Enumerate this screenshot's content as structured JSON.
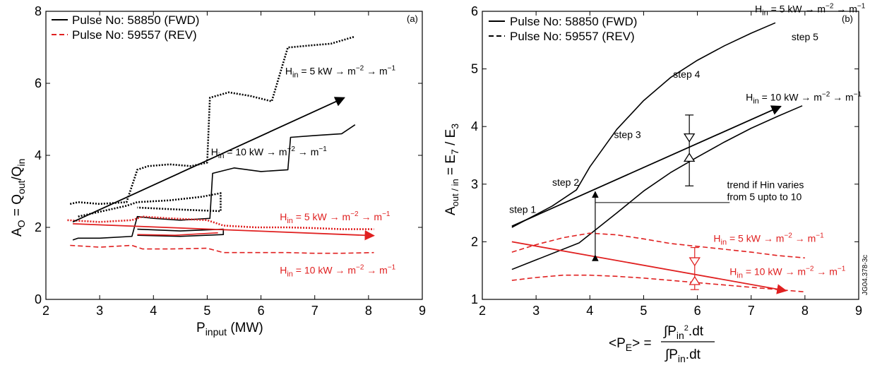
{
  "colors": {
    "fwd": "#000000",
    "rev": "#e02020"
  },
  "chart_data": [
    {
      "type": "line",
      "panel": "(a)",
      "xlabel_main": "P",
      "xlabel_sub": "input",
      "xlabel_tail": " (MW)",
      "ylabel_main": "A",
      "ylabel_sub1": "O",
      "ylabel_mid": " = Q",
      "ylabel_sub2": "out",
      "ylabel_mid2": "/Q",
      "ylabel_sub3": "in",
      "xlim": [
        2,
        9
      ],
      "ylim": [
        0,
        8
      ],
      "xticks": [
        "2",
        "3",
        "4",
        "5",
        "6",
        "7",
        "8",
        "9"
      ],
      "yticks": [
        "0",
        "2",
        "4",
        "6",
        "8"
      ],
      "legend": [
        {
          "label": "Pulse No: 58850 (FWD)",
          "style": "solid",
          "color": "#000000"
        },
        {
          "label": "Pulse No: 59557 (REV)",
          "style": "dashed",
          "color": "#e02020"
        }
      ],
      "series": [
        {
          "pulse": "58850",
          "branch": "5 kW",
          "style": "dotted",
          "color": "#000000",
          "x": [
            2.45,
            2.6,
            3.0,
            3.5,
            3.7,
            3.9,
            4.3,
            4.7,
            5.0,
            5.05,
            5.4,
            5.8,
            6.2,
            6.5,
            6.55,
            6.9,
            7.3,
            7.75
          ],
          "y": [
            2.65,
            2.7,
            2.65,
            2.7,
            3.6,
            3.7,
            3.75,
            3.7,
            3.8,
            5.6,
            5.75,
            5.65,
            5.5,
            7.0,
            7.0,
            7.05,
            7.1,
            7.3
          ]
        },
        {
          "pulse": "58850",
          "branch": "5 kW return",
          "style": "dotted",
          "color": "#000000",
          "x": [
            2.6,
            3.5,
            3.7,
            4.3,
            4.9,
            5.25,
            5.25,
            4.4,
            3.7
          ],
          "y": [
            2.3,
            2.6,
            2.7,
            2.75,
            2.85,
            2.95,
            2.45,
            2.5,
            2.55
          ]
        },
        {
          "pulse": "58850",
          "branch": "10 kW",
          "style": "solid",
          "color": "#000000",
          "x": [
            2.5,
            2.6,
            3.0,
            3.6,
            3.7,
            4.0,
            4.5,
            5.05,
            5.1,
            5.5,
            6.0,
            6.5,
            6.55,
            7.0,
            7.5,
            7.75
          ],
          "y": [
            1.65,
            1.7,
            1.7,
            1.75,
            2.3,
            2.25,
            2.2,
            2.25,
            3.5,
            3.65,
            3.55,
            3.6,
            4.5,
            4.55,
            4.6,
            4.85
          ]
        },
        {
          "pulse": "58850",
          "branch": "10 kW return",
          "style": "solid",
          "color": "#000000",
          "x": [
            3.7,
            4.5,
            5.3,
            5.3,
            4.5,
            3.7
          ],
          "y": [
            1.95,
            1.9,
            1.95,
            1.8,
            1.75,
            1.78
          ]
        },
        {
          "pulse": "59557",
          "branch": "5 kW",
          "style": "dotted",
          "color": "#e02020",
          "x": [
            2.4,
            3.0,
            3.6,
            3.8,
            4.3,
            5.0,
            5.3,
            5.9,
            6.5,
            7.0,
            7.5,
            8.1
          ],
          "y": [
            2.2,
            2.15,
            2.2,
            2.3,
            2.25,
            2.2,
            2.05,
            2.0,
            2.0,
            1.98,
            1.95,
            1.95
          ]
        },
        {
          "pulse": "59557",
          "branch": "10 kW",
          "style": "dashed",
          "color": "#e02020",
          "x": [
            2.45,
            3.0,
            3.6,
            3.8,
            4.3,
            5.0,
            5.3,
            6.0,
            6.5,
            7.0,
            7.5,
            8.1
          ],
          "y": [
            1.5,
            1.45,
            1.5,
            1.4,
            1.4,
            1.42,
            1.3,
            1.3,
            1.3,
            1.28,
            1.28,
            1.3
          ]
        },
        {
          "pulse": "59557",
          "branch": "10 kW return",
          "style": "solid",
          "color": "#e02020",
          "x": [
            3.7,
            4.4,
            5.2
          ],
          "y": [
            1.8,
            1.78,
            1.85
          ]
        }
      ],
      "arrows": [
        {
          "color": "#000000",
          "from": [
            2.5,
            2.15
          ],
          "to": [
            7.55,
            5.6
          ]
        },
        {
          "color": "#e02020",
          "from": [
            2.5,
            2.1
          ],
          "to": [
            8.1,
            1.77
          ]
        }
      ],
      "annotations": [
        {
          "id": "a-h5-black",
          "pre": "H",
          "sub": "in",
          "text": " = 5 kW → m",
          "sup1": "−2",
          "text2": " → m",
          "sup2": "−1",
          "x": 6.45,
          "y": 6.25,
          "color": "#000000"
        },
        {
          "id": "a-h10-black",
          "pre": "H",
          "sub": "in",
          "text": " = 10 kW → m",
          "sup1": "−2",
          "text2": " → m",
          "sup2": "−1",
          "x": 5.07,
          "y": 4.0,
          "color": "#000000"
        },
        {
          "id": "a-h5-red",
          "pre": "H",
          "sub": "in",
          "text": " = 5 kW → m",
          "sup1": "−2",
          "text2": " → m",
          "sup2": "−1",
          "x": 6.35,
          "y": 2.2,
          "color": "#e02020"
        },
        {
          "id": "a-h10-red",
          "pre": "H",
          "sub": "in",
          "text": " = 10 kW → m",
          "sup1": "−2",
          "text2": " → m",
          "sup2": "−1",
          "x": 6.35,
          "y": 0.72,
          "color": "#e02020"
        }
      ]
    },
    {
      "type": "line",
      "panel": "(b)",
      "xlabel_lhs": "<P",
      "xlabel_lhs_sub": "E",
      "xlabel_eq": "> = ",
      "xlabel_num": "∫P",
      "xlabel_num_sub": "in",
      "xlabel_num_sup": "2",
      "xlabel_num_tail": ".dt",
      "xlabel_den": "∫P",
      "xlabel_den_sub": "in",
      "xlabel_den_tail": ".dt",
      "ylabel_main": "A",
      "ylabel_sub1": "out / in",
      "ylabel_mid": " = E",
      "ylabel_sub2": "7",
      "ylabel_mid2": " / E",
      "ylabel_sub3": "3",
      "xlim": [
        2,
        9
      ],
      "ylim": [
        1,
        6
      ],
      "xticks": [
        "2",
        "3",
        "4",
        "5",
        "6",
        "7",
        "8",
        "9"
      ],
      "yticks": [
        "1",
        "2",
        "3",
        "4",
        "5",
        "6"
      ],
      "side_label": "JG04.378-3c",
      "legend": [
        {
          "label": "Pulse No: 58850 (FWD)",
          "style": "solid",
          "color": "#000000"
        },
        {
          "label": "Pulse No: 59557 (REV)",
          "style": "dashed",
          "color": "#000000"
        }
      ],
      "series": [
        {
          "pulse": "58850",
          "branch": "5 kW",
          "style": "solid",
          "color": "#000000",
          "x": [
            2.55,
            3.3,
            3.75,
            4.0,
            4.5,
            5.0,
            5.5,
            6.0,
            6.5,
            7.0,
            7.45
          ],
          "y": [
            2.25,
            2.62,
            2.9,
            3.3,
            3.95,
            4.45,
            4.85,
            5.15,
            5.4,
            5.62,
            5.8
          ]
        },
        {
          "pulse": "58850",
          "branch": "10 kW",
          "style": "solid",
          "color": "#000000",
          "x": [
            2.55,
            3.8,
            4.5,
            5.0,
            5.5,
            6.0,
            6.5,
            7.0,
            7.5,
            7.95
          ],
          "y": [
            1.52,
            1.98,
            2.5,
            2.88,
            3.2,
            3.47,
            3.73,
            3.97,
            4.18,
            4.36
          ]
        },
        {
          "pulse": "59557",
          "branch": "5 kW",
          "style": "dashed",
          "color": "#e02020",
          "x": [
            2.55,
            3.0,
            3.5,
            4.0,
            4.5,
            5.0,
            5.5,
            6.0,
            6.5,
            7.0,
            7.5,
            8.0
          ],
          "y": [
            1.82,
            1.95,
            2.07,
            2.15,
            2.12,
            2.05,
            1.97,
            1.92,
            1.87,
            1.82,
            1.76,
            1.72
          ]
        },
        {
          "pulse": "59557",
          "branch": "10 kW",
          "style": "dashed",
          "color": "#e02020",
          "x": [
            2.55,
            3.0,
            3.5,
            4.0,
            4.5,
            5.0,
            5.5,
            6.0,
            6.5,
            7.0,
            7.5,
            8.0
          ],
          "y": [
            1.33,
            1.38,
            1.42,
            1.42,
            1.4,
            1.37,
            1.33,
            1.29,
            1.25,
            1.21,
            1.17,
            1.13
          ]
        }
      ],
      "arrows": [
        {
          "color": "#000000",
          "from": [
            2.55,
            2.27
          ],
          "to": [
            7.55,
            4.35
          ]
        },
        {
          "color": "#e02020",
          "from": [
            2.55,
            2.0
          ],
          "to": [
            7.65,
            1.15
          ]
        }
      ],
      "error_bars": [
        {
          "color": "#000000",
          "x": 5.85,
          "y_low": 2.97,
          "y_high": 4.2,
          "markers": [
            3.75,
            3.52
          ]
        },
        {
          "color": "#e02020",
          "x": 5.95,
          "y_low": 1.17,
          "y_high": 1.9,
          "markers": [
            1.6,
            1.38
          ]
        }
      ],
      "trend_bracket": {
        "x": 4.1,
        "y_low": 1.77,
        "y_high": 2.87,
        "line_to_x": 6.6,
        "line_y": 2.68
      },
      "annotations": [
        {
          "id": "b-step1",
          "text": "step 1",
          "x": 2.5,
          "y": 2.5,
          "color": "#000000"
        },
        {
          "id": "b-step2",
          "text": "step 2",
          "x": 3.3,
          "y": 2.97,
          "color": "#000000"
        },
        {
          "id": "b-step3",
          "text": "step 3",
          "x": 4.45,
          "y": 3.8,
          "color": "#000000"
        },
        {
          "id": "b-step4",
          "text": "step 4",
          "x": 5.55,
          "y": 4.85,
          "color": "#000000"
        },
        {
          "id": "b-step5",
          "text": "step 5",
          "x": 7.75,
          "y": 5.5,
          "color": "#000000"
        },
        {
          "id": "b-trend-1",
          "text": "trend if Hin varies",
          "x": 6.55,
          "y": 2.93,
          "color": "#000000"
        },
        {
          "id": "b-trend-2",
          "text": "from 5 upto to 10",
          "x": 6.55,
          "y": 2.72,
          "color": "#000000"
        }
      ],
      "h_annotations": [
        {
          "id": "b-h5-black",
          "pre": "H",
          "sub": "in",
          "text": " = 5 kW → m",
          "sup1": "−2",
          "text2": " → m",
          "sup2": "−1",
          "x": 7.07,
          "y": 5.98,
          "color": "#000000"
        },
        {
          "id": "b-h10-black",
          "pre": "H",
          "sub": "in",
          "text": " = 10 kW → m",
          "sup1": "−2",
          "text2": " → m",
          "sup2": "−1",
          "x": 6.9,
          "y": 4.45,
          "color": "#000000"
        },
        {
          "id": "b-h5-red",
          "pre": "H",
          "sub": "in",
          "text": " = 5 kW → m",
          "sup1": "−2",
          "text2": " → m",
          "sup2": "−1",
          "x": 6.3,
          "y": 2.0,
          "color": "#e02020"
        },
        {
          "id": "b-h10-red",
          "pre": "H",
          "sub": "in",
          "text": " = 10 kW → m",
          "sup1": "−2",
          "text2": " → m",
          "sup2": "−1",
          "x": 6.6,
          "y": 1.42,
          "color": "#e02020"
        }
      ]
    }
  ]
}
